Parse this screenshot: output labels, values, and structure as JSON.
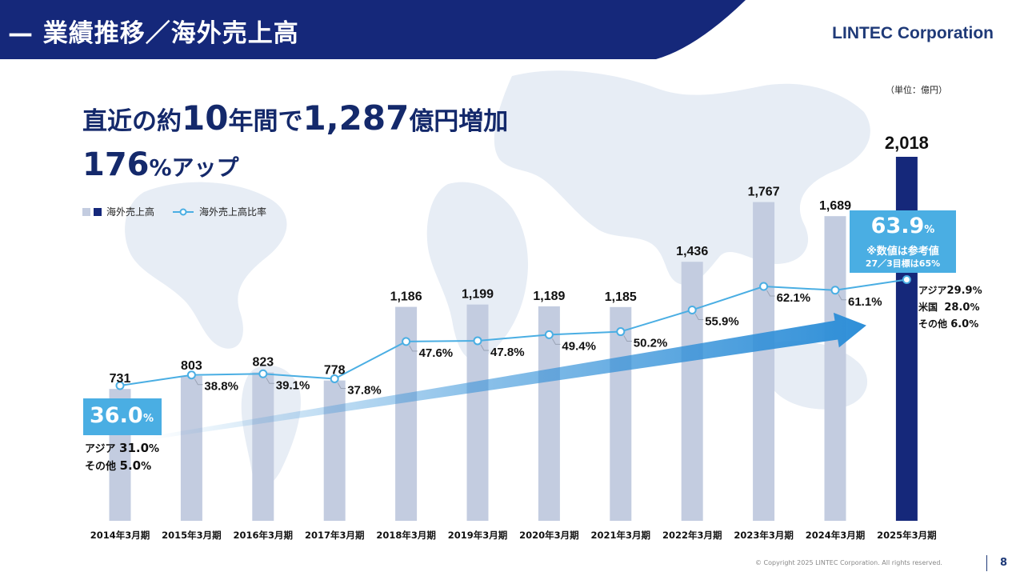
{
  "header": {
    "title": "— 業績推移／海外売上高",
    "company": "LINTEC Corporation"
  },
  "unit_note": "（単位：億円）",
  "headline": {
    "line1_a": "直近の約",
    "line1_b": "10",
    "line1_c": "年間で",
    "line1_d": "1,287",
    "line1_e": "億円増加",
    "line2_a": "176",
    "line2_b": "%アップ"
  },
  "legend": {
    "bar_label": "海外売上高",
    "line_label": "海外売上高比率"
  },
  "callout_left": {
    "value": "36.0",
    "percent": "%",
    "breakdown": [
      {
        "label": "アジア",
        "value": "31.0",
        "unit": "%"
      },
      {
        "label": "その他",
        "value": "5.0",
        "unit": "%"
      }
    ]
  },
  "callout_right": {
    "value": "63.9",
    "percent": "%",
    "note1": "※数値は参考値",
    "note2": "27／3目標は65%",
    "breakdown": [
      {
        "label": "アジア",
        "value": "29.9",
        "unit": "%"
      },
      {
        "label": "米国",
        "value": "28.0",
        "unit": "%"
      },
      {
        "label": "その他",
        "value": "6.0",
        "unit": "%"
      }
    ]
  },
  "colors": {
    "header_bg": "#15287a",
    "bar": "#c3cce0",
    "bar_highlight": "#15287a",
    "line": "#4aaee3",
    "callout": "#4aaee3",
    "arrow": "#2f8fd8"
  },
  "chart_data": {
    "type": "bar",
    "categories": [
      "2014年3月期",
      "2015年3月期",
      "2016年3月期",
      "2017年3月期",
      "2018年3月期",
      "2019年3月期",
      "2020年3月期",
      "2021年3月期",
      "2022年3月期",
      "2023年3月期",
      "2024年3月期",
      "2025年3月期"
    ],
    "series": [
      {
        "name": "海外売上高",
        "type": "bar",
        "values": [
          731,
          803,
          823,
          778,
          1186,
          1199,
          1189,
          1185,
          1436,
          1767,
          1689,
          2018
        ],
        "labels": [
          "731",
          "803",
          "823",
          "778",
          "1,186",
          "1,199",
          "1,189",
          "1,185",
          "1,436",
          "1,767",
          "1,689",
          "2,018"
        ]
      },
      {
        "name": "海外売上高比率",
        "type": "line",
        "values": [
          36.0,
          38.8,
          39.1,
          37.8,
          47.6,
          47.8,
          49.4,
          50.2,
          55.9,
          62.1,
          61.1,
          63.9
        ],
        "labels": [
          "",
          "38.8%",
          "39.1%",
          "37.8%",
          "47.6%",
          "47.8%",
          "49.4%",
          "50.2%",
          "55.9%",
          "62.1%",
          "61.1%",
          ""
        ]
      }
    ],
    "ylabel": "（単位：億円）",
    "legend_position": "top-left"
  },
  "footer": {
    "copyright": "© Copyright 2025 LINTEC Corporation. All rights reserved.",
    "page": "8"
  }
}
